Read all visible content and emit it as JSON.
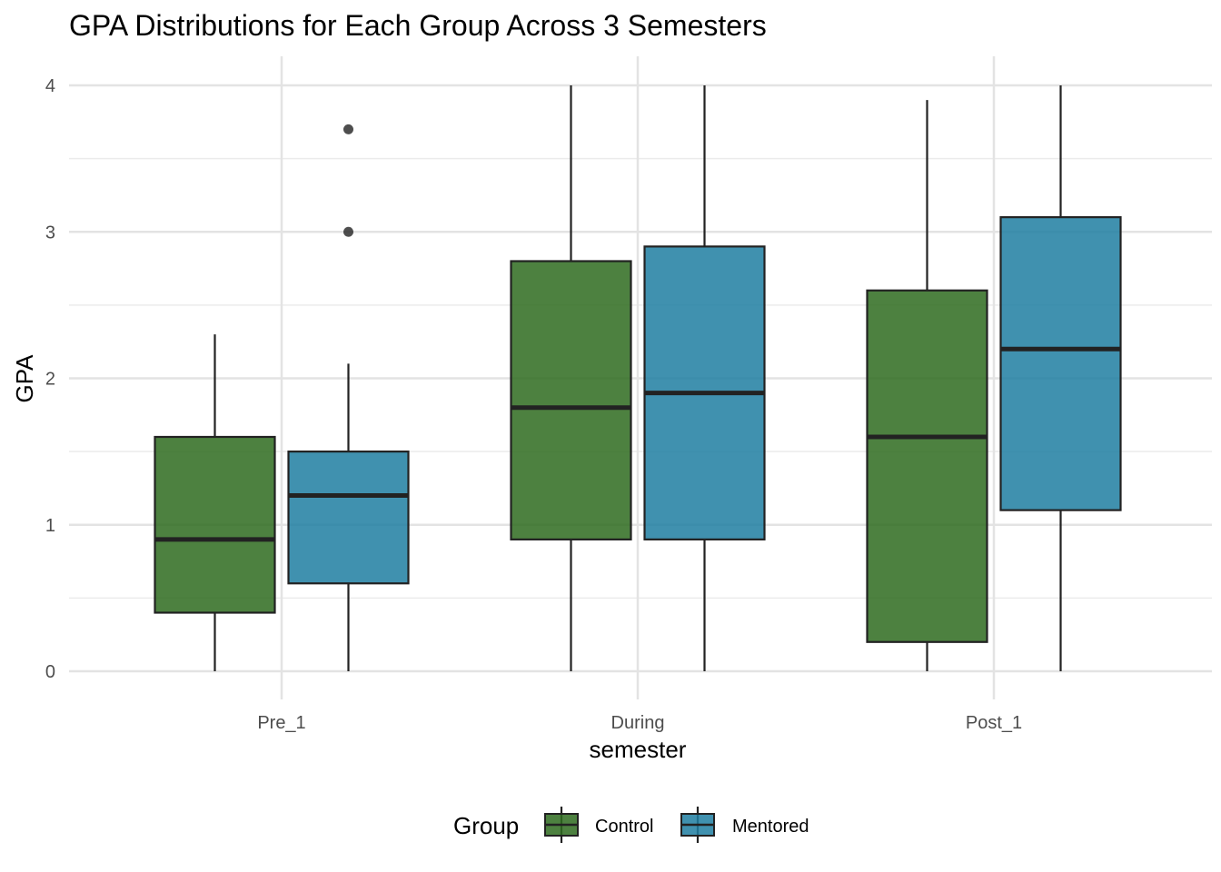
{
  "chart_data": {
    "type": "boxplot",
    "title": "GPA Distributions for Each Group Across 3 Semesters",
    "xlabel": "semester",
    "ylabel": "GPA",
    "categories": [
      "Pre_1",
      "During",
      "Post_1"
    ],
    "ylim": [
      0,
      4
    ],
    "yticks": [
      "0",
      "1",
      "2",
      "3",
      "4"
    ],
    "grid": true,
    "legend": {
      "title": "Group",
      "position": "bottom"
    },
    "series": [
      {
        "name": "Control",
        "color": "#2e6b1f",
        "boxes": [
          {
            "min": 0.0,
            "q1": 0.4,
            "median": 0.9,
            "q3": 1.6,
            "max": 2.3,
            "outliers": []
          },
          {
            "min": 0.0,
            "q1": 0.9,
            "median": 1.8,
            "q3": 2.8,
            "max": 4.0,
            "outliers": []
          },
          {
            "min": 0.0,
            "q1": 0.2,
            "median": 1.6,
            "q3": 2.6,
            "max": 3.9,
            "outliers": []
          }
        ]
      },
      {
        "name": "Mentored",
        "color": "#1f7ea1",
        "boxes": [
          {
            "min": 0.0,
            "q1": 0.6,
            "median": 1.2,
            "q3": 1.5,
            "max": 2.1,
            "outliers": [
              3.0,
              3.7
            ]
          },
          {
            "min": 0.0,
            "q1": 0.9,
            "median": 1.9,
            "q3": 2.9,
            "max": 4.0,
            "outliers": []
          },
          {
            "min": 0.0,
            "q1": 1.1,
            "median": 2.2,
            "q3": 3.1,
            "max": 4.0,
            "outliers": []
          }
        ]
      }
    ]
  }
}
